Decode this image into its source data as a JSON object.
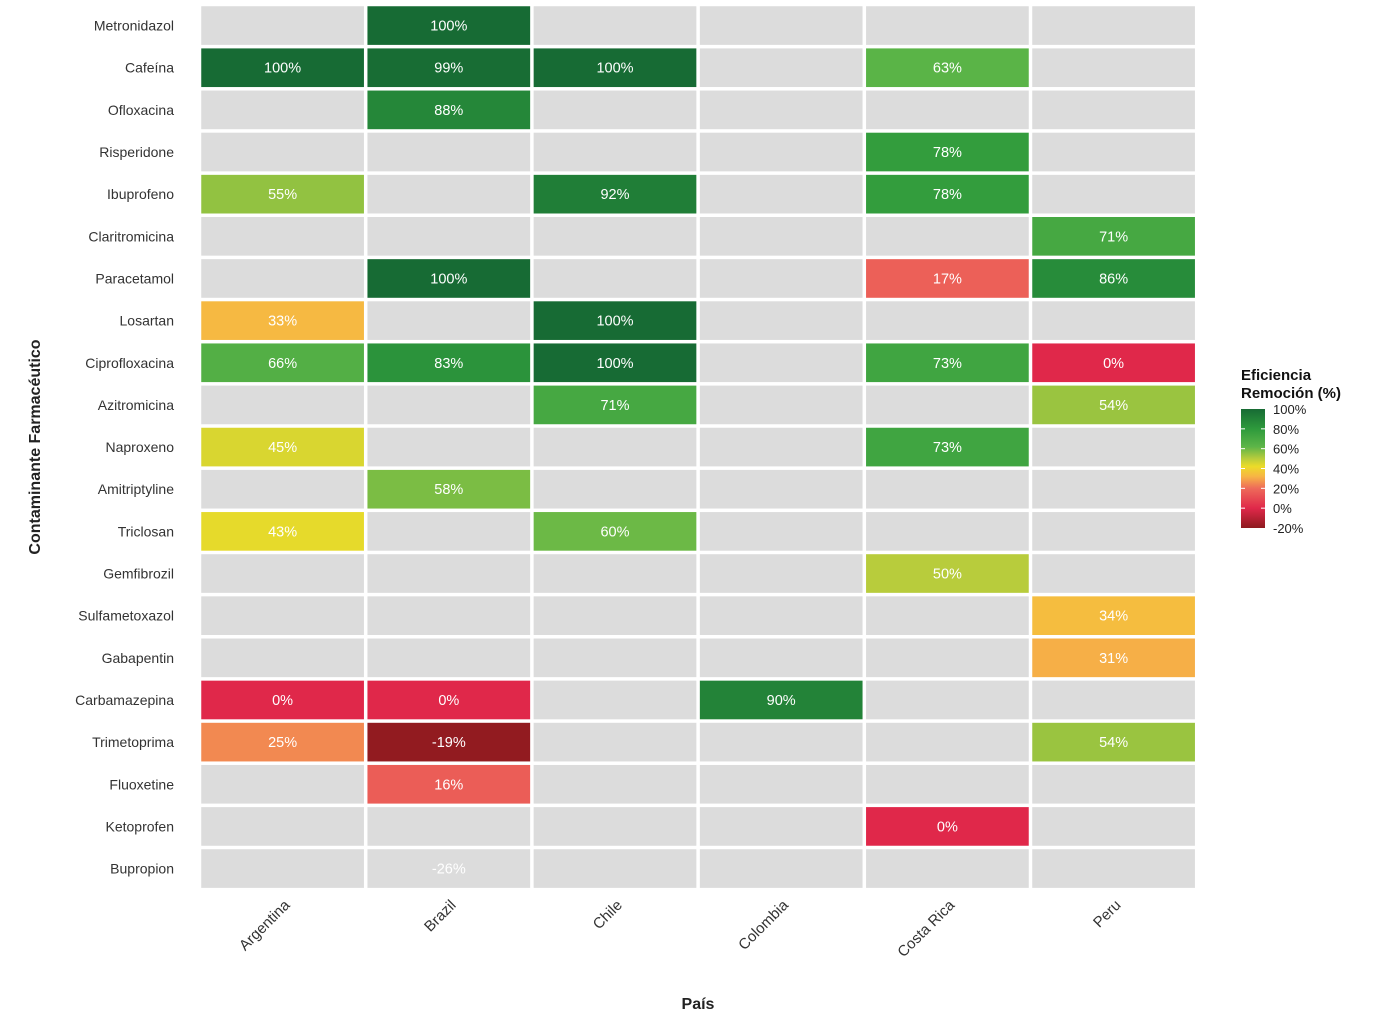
{
  "chart_data": {
    "type": "heatmap",
    "title": "",
    "xlabel": "País",
    "ylabel": "Contaminante Farmacéutico",
    "x": [
      "Argentina",
      "Brazil",
      "Chile",
      "Colombia",
      "Costa Rica",
      "Peru"
    ],
    "y": [
      "Metronidazol",
      "Cafeína",
      "Ofloxacina",
      "Risperidone",
      "Ibuprofeno",
      "Claritromicina",
      "Paracetamol",
      "Losartan",
      "Ciprofloxacina",
      "Azitromicina",
      "Naproxeno",
      "Amitriptyline",
      "Triclosan",
      "Gemfibrozil",
      "Sulfametoxazol",
      "Gabapentin",
      "Carbamazepina",
      "Trimetoprima",
      "Fluoxetine",
      "Ketoprofen",
      "Bupropion"
    ],
    "values": [
      [
        null,
        100,
        null,
        null,
        null,
        null
      ],
      [
        100,
        99,
        100,
        null,
        63,
        null
      ],
      [
        null,
        88,
        null,
        null,
        null,
        null
      ],
      [
        null,
        null,
        null,
        null,
        78,
        null
      ],
      [
        55,
        null,
        92,
        null,
        78,
        null
      ],
      [
        null,
        null,
        null,
        null,
        null,
        71
      ],
      [
        null,
        100,
        null,
        null,
        17,
        86
      ],
      [
        33,
        null,
        100,
        null,
        null,
        null
      ],
      [
        66,
        83,
        100,
        null,
        73,
        0
      ],
      [
        null,
        null,
        71,
        null,
        null,
        54
      ],
      [
        45,
        null,
        null,
        null,
        73,
        null
      ],
      [
        null,
        58,
        null,
        null,
        null,
        null
      ],
      [
        43,
        null,
        60,
        null,
        null,
        null
      ],
      [
        null,
        null,
        null,
        null,
        50,
        null
      ],
      [
        null,
        null,
        null,
        null,
        null,
        34
      ],
      [
        null,
        null,
        null,
        null,
        null,
        31
      ],
      [
        0,
        0,
        null,
        90,
        null,
        null
      ],
      [
        25,
        -19,
        null,
        null,
        null,
        54
      ],
      [
        null,
        16,
        null,
        null,
        null,
        null
      ],
      [
        null,
        null,
        null,
        null,
        0,
        null
      ],
      [
        null,
        -26,
        null,
        null,
        null,
        null
      ]
    ],
    "value_suffix": "%",
    "color_range": [
      -20,
      100
    ],
    "na_color": "#dcdcdc",
    "legend": {
      "title_line1": "Eficiencia",
      "title_line2": "Remoción (%)",
      "ticks": [
        "100%",
        "80%",
        "60%",
        "40%",
        "20%",
        "0%",
        "-20%"
      ],
      "tick_values": [
        100,
        80,
        60,
        40,
        20,
        0,
        -20
      ],
      "placement": "right"
    },
    "color_stops": [
      [
        -20,
        "#8e1a1e"
      ],
      [
        0,
        "#e0284a"
      ],
      [
        20,
        "#ee6a5a"
      ],
      [
        32,
        "#f7b545"
      ],
      [
        42,
        "#ecdc28"
      ],
      [
        50,
        "#b8cc3c"
      ],
      [
        62,
        "#5db548"
      ],
      [
        80,
        "#2e9a3c"
      ],
      [
        100,
        "#176b34"
      ]
    ]
  }
}
